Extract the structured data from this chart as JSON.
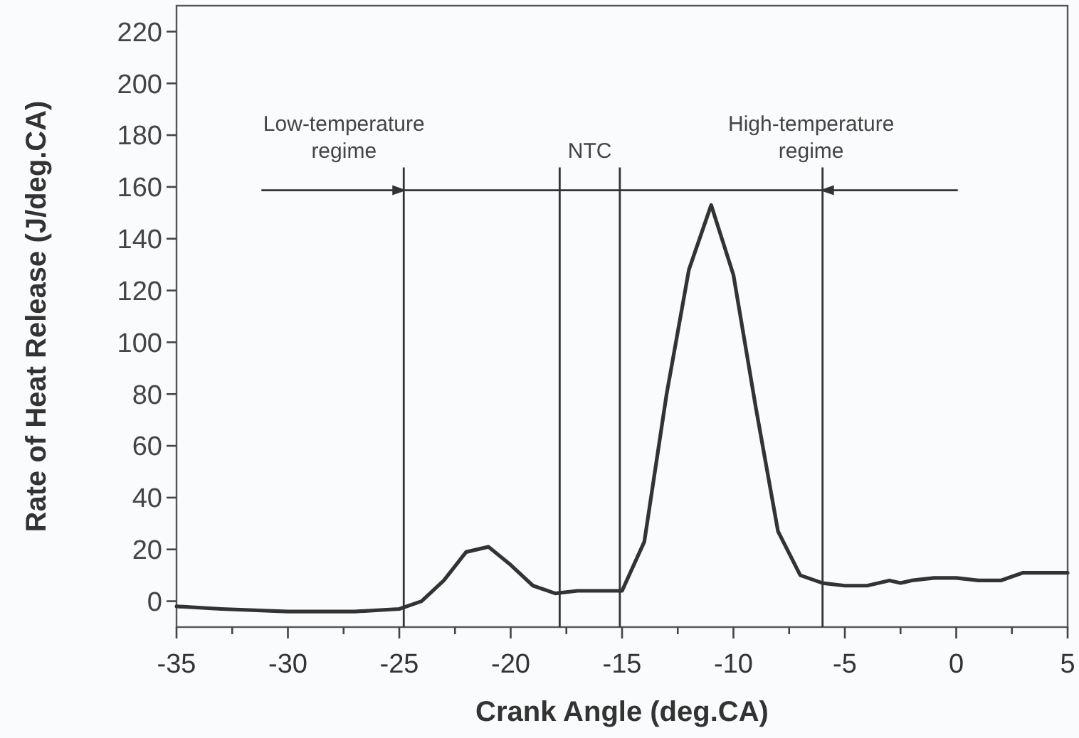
{
  "chart_data": {
    "type": "line",
    "xlabel": "Crank Angle  (deg.CA)",
    "ylabel": "Rate of Heat Release (J/deg.CA)",
    "x": [
      -35,
      -33,
      -30,
      -27,
      -25,
      -24,
      -23,
      -22,
      -21,
      -20,
      -19,
      -18,
      -17,
      -16,
      -15,
      -14,
      -13,
      -12,
      -11,
      -10,
      -9,
      -8,
      -7,
      -6,
      -5,
      -4,
      -3,
      -2.5,
      -2,
      -1,
      0,
      1,
      2,
      3,
      5
    ],
    "series": [
      {
        "color": "#333333",
        "values": [
          -2,
          -3,
          -4,
          -4,
          -3,
          0,
          8,
          19,
          21,
          14,
          6,
          3,
          4,
          4,
          4,
          23,
          80,
          128,
          153,
          126,
          75,
          27,
          10,
          7,
          6,
          6,
          8,
          7,
          8,
          9,
          9,
          8,
          8,
          11,
          11
        ]
      }
    ],
    "xlim": [
      -35,
      5
    ],
    "ylim": [
      -10,
      230
    ],
    "xticks": [
      -35,
      {
        "value": -32.5,
        "label": null
      },
      -30,
      {
        "value": -27.5,
        "label": null
      },
      -25,
      {
        "value": -22.5,
        "label": null
      },
      -20,
      {
        "value": -17.5,
        "label": null
      },
      -15,
      {
        "value": -12.5,
        "label": null
      },
      -10,
      {
        "value": -7.5,
        "label": null
      },
      -5,
      {
        "value": -2.5,
        "label": null
      },
      0,
      {
        "value": 2.5,
        "label": null
      },
      5
    ],
    "yticks": [
      0,
      20,
      40,
      60,
      80,
      100,
      120,
      140,
      160,
      180,
      200,
      220
    ],
    "ref_lines": [
      {
        "axis": "x",
        "value": -24.8,
        "color": "#333333"
      },
      {
        "axis": "x",
        "value": -17.8,
        "color": "#333333"
      },
      {
        "axis": "x",
        "value": -15.1,
        "color": "#333333"
      },
      {
        "axis": "x",
        "value": -6,
        "color": "#333333"
      }
    ],
    "annotations": [
      "Low-temperature\nregime",
      "NTC",
      "High-temperature\nregime"
    ],
    "marker": "none",
    "line_style": "solid"
  }
}
